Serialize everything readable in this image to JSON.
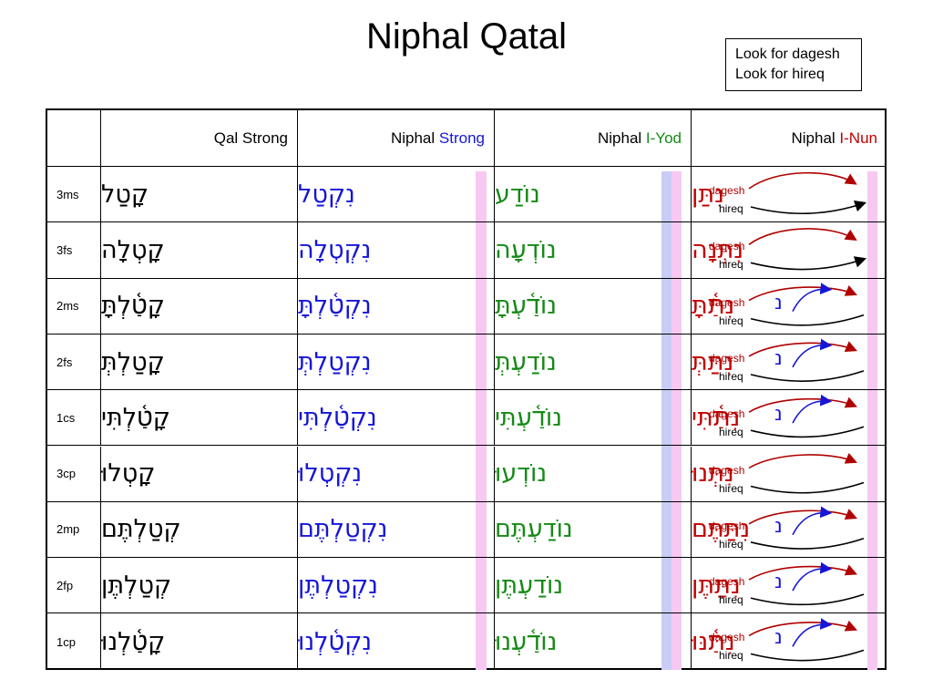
{
  "title": "Niphal Qatal",
  "note": {
    "line1": "Look for dagesh",
    "line2": "Look for hireq"
  },
  "headers": {
    "qal": "Qal Strong",
    "niphal_strong_a": "Niphal",
    "niphal_strong_b": "Strong",
    "iyod_a": "Niphal",
    "iyod_b": "I-Yod",
    "inun_a": "Niphal",
    "inun_b": "I-Nun"
  },
  "colors": {
    "blue": "#1515d8",
    "green": "#158a15",
    "red": "#c00000",
    "pink_hl": "#f7c8f2",
    "blue_hl": "#c9cdf6"
  },
  "icons": [
    "curved-arrow-icon"
  ],
  "annotation": {
    "dagesh": "dagesh",
    "hireq": "hireq",
    "nun": "נ"
  },
  "rows": [
    {
      "label": "3ms",
      "qal": "קָטַל",
      "ns": "נִקְטַל",
      "iy": "נוֹדַע",
      "in": "נִתַּן",
      "nun": false
    },
    {
      "label": "3fs",
      "qal": "קָטְלָה",
      "ns": "נִקְטְלָה",
      "iy": "נוֹדְעָה",
      "in": "נִתְּנָה",
      "nun": false
    },
    {
      "label": "2ms",
      "qal": "קָטַ֫לְתָּ",
      "ns": "נִקְטַ֫לְתָּ",
      "iy": "נוֹדַ֫עְתָּ",
      "in": "נִתַּ֫תָּ",
      "nun": true
    },
    {
      "label": "2fs",
      "qal": "קָטַלְתְּ",
      "ns": "נִקְטַלְתְּ",
      "iy": "נוֹדַעְתְּ",
      "in": "נִתַּתְּ",
      "nun": true
    },
    {
      "label": "1cs",
      "qal": "קָטַ֫לְתִּי",
      "ns": "נִקְטַ֫לְתִּי",
      "iy": "נוֹדַ֫עְתִּי",
      "in": "נִתַּ֫תִּי",
      "nun": true
    },
    {
      "label": "3cp",
      "qal": "קָטְלוּ",
      "ns": "נִקְטְלוּ",
      "iy": "נוֹדְעוּ",
      "in": "נִתְּנוּ",
      "nun": false
    },
    {
      "label": "2mp",
      "qal": "קְטַלְתֶּם",
      "ns": "נִקְטַלְתֶּם",
      "iy": "נוֹדַעְתֶּם",
      "in": "נִתַּתֶּם",
      "nun": true
    },
    {
      "label": "2fp",
      "qal": "קְטַלְתֶּן",
      "ns": "נִקְטַלְתֶּן",
      "iy": "נוֹדַעְתֶּן",
      "in": "נִתַּתֶּן",
      "nun": true
    },
    {
      "label": "1cp",
      "qal": "קָטַ֫לְנוּ",
      "ns": "נִקְטַ֫לְנוּ",
      "iy": "נוֹדַ֫עְנוּ",
      "in": "נִתַּ֫נּוּ",
      "nun": true
    }
  ]
}
